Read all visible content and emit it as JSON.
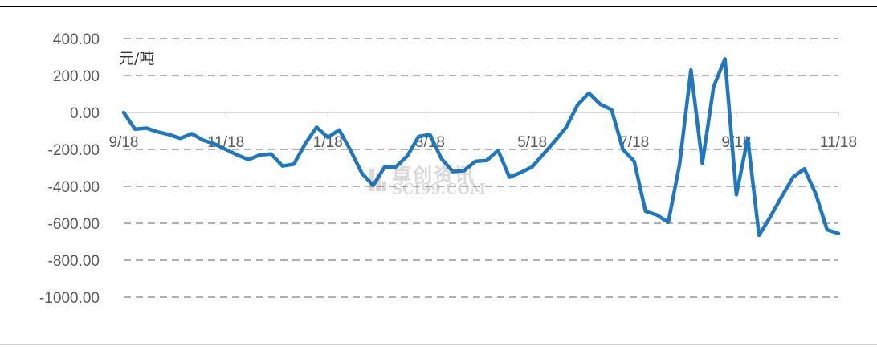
{
  "unit_label": "元/吨",
  "watermark": {
    "cn": "卓创资讯",
    "en": "SCI99.COM"
  },
  "colors": {
    "line": "#1f77c0",
    "grid": "#b0b0b0",
    "text": "#595959"
  },
  "chart_data": {
    "type": "line",
    "title": "",
    "xlabel": "",
    "ylabel": "元/吨",
    "ylim": [
      -1000,
      400
    ],
    "yticks": [
      "400.00",
      "200.00",
      "0.00",
      "-200.00",
      "-400.00",
      "-600.00",
      "-800.00",
      "-1000.00"
    ],
    "ytick_values": [
      400,
      200,
      0,
      -200,
      -400,
      -600,
      -800,
      -1000
    ],
    "grid": "horizontal dashed",
    "legend": "none",
    "xticks": [
      {
        "label": "9/18",
        "index": 0
      },
      {
        "label": "11/18",
        "index": 9
      },
      {
        "label": "1/18",
        "index": 18
      },
      {
        "label": "3/18",
        "index": 27
      },
      {
        "label": "5/18",
        "index": 36
      },
      {
        "label": "7/18",
        "index": 45
      },
      {
        "label": "9/18",
        "index": 54
      },
      {
        "label": "11/18",
        "index": 63
      }
    ],
    "series": [
      {
        "values": [
          0,
          -90,
          -85,
          -105,
          -120,
          -140,
          -115,
          -150,
          -170,
          -200,
          -230,
          -255,
          -230,
          -225,
          -290,
          -280,
          -170,
          -80,
          -135,
          -95,
          -205,
          -330,
          -395,
          -295,
          -295,
          -235,
          -130,
          -120,
          -250,
          -320,
          -315,
          -265,
          -260,
          -205,
          -350,
          -325,
          -295,
          -225,
          -155,
          -80,
          40,
          105,
          45,
          15,
          -200,
          -265,
          -535,
          -555,
          -595,
          -280,
          230,
          -275,
          140,
          290,
          -445,
          -140,
          -665,
          -565,
          -455,
          -350,
          -305,
          -440,
          -635,
          -655
        ]
      }
    ]
  }
}
